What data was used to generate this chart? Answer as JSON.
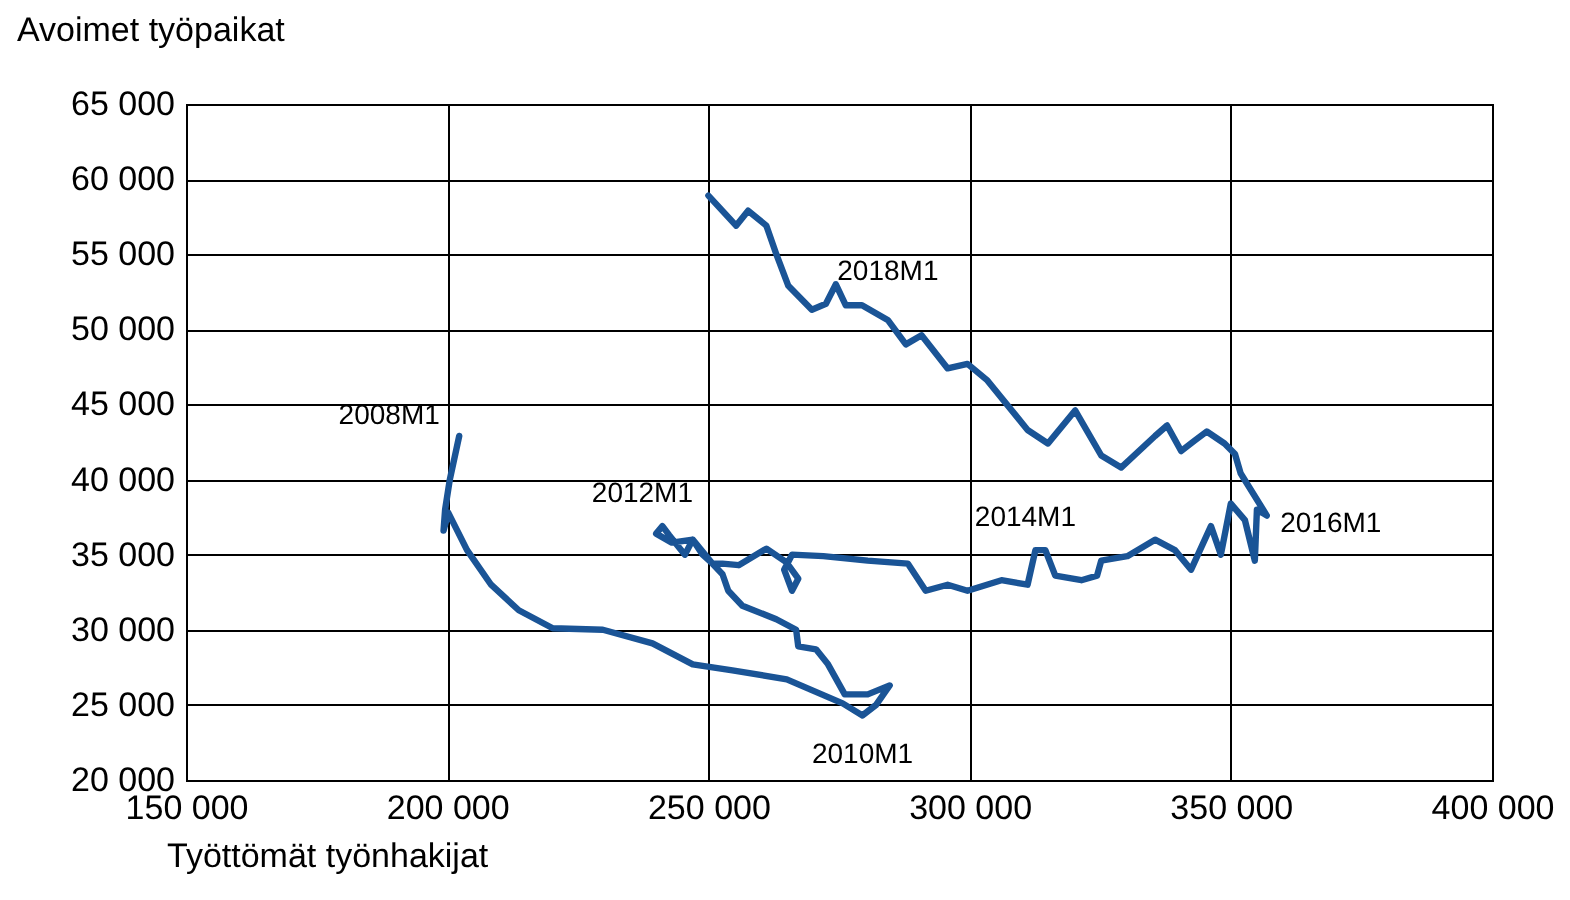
{
  "chart_data": {
    "type": "line",
    "xlabel": "Työttömät työnhakijat",
    "ylabel": "Avoimet työpaikat",
    "series": [
      {
        "color": "#1a5496",
        "x": [
          202300,
          200500,
          199600,
          199300,
          200200,
          203800,
          208400,
          213700,
          220200,
          229800,
          239300,
          247000,
          254600,
          265000,
          275700,
          279500,
          282100,
          284700,
          280500,
          276100,
          272900,
          270600,
          267200,
          266800,
          263000,
          256500,
          253800,
          252700,
          250800,
          248900,
          247000,
          243000,
          240000,
          241200,
          242500,
          245500,
          247000,
          250800,
          252700,
          255800,
          261100,
          264900,
          267200,
          266000,
          264500,
          266000,
          272000,
          280500,
          288200,
          291600,
          295800,
          299600,
          306100,
          311100,
          312600,
          314500,
          316400,
          321400,
          324400,
          325200,
          330200,
          335500,
          339300,
          342400,
          346200,
          348100,
          350000,
          352700,
          354600,
          355000,
          356900,
          351900,
          350800,
          348800,
          345400,
          343100,
          340500,
          337800,
          335500,
          329000,
          325200,
          320200,
          315000,
          311100,
          303400,
          299600,
          295800,
          290800,
          287800,
          284400,
          279400,
          276300,
          274400,
          272500,
          269800,
          265300,
          263000,
          261100,
          257600,
          255300,
          250000
        ],
        "values": [
          42900,
          40000,
          38000,
          36600,
          37800,
          35300,
          33000,
          31300,
          30100,
          30000,
          29100,
          27700,
          27300,
          26700,
          25100,
          24300,
          25000,
          26300,
          25700,
          25700,
          27700,
          28700,
          28900,
          30000,
          30700,
          31600,
          32600,
          33700,
          34400,
          35000,
          36000,
          35800,
          36400,
          36900,
          36300,
          35000,
          36000,
          34400,
          34400,
          34300,
          35400,
          34500,
          33400,
          32600,
          34000,
          35000,
          34900,
          34600,
          34400,
          32600,
          33000,
          32600,
          33300,
          33000,
          35300,
          35300,
          33600,
          33300,
          33600,
          34600,
          34900,
          36000,
          35300,
          34000,
          36900,
          35000,
          38400,
          37300,
          34600,
          38000,
          37600,
          40400,
          41700,
          42400,
          43200,
          42600,
          41900,
          43600,
          42900,
          40800,
          41600,
          44600,
          42400,
          43300,
          46600,
          47700,
          47400,
          49600,
          49000,
          50600,
          51600,
          51600,
          53000,
          51700,
          51300,
          52900,
          55000,
          56900,
          57900,
          56900,
          58900
        ]
      }
    ],
    "xlim": [
      150000,
      400000
    ],
    "xticks": [
      {
        "value": 150000,
        "label": "150 000"
      },
      {
        "value": 200000,
        "label": "200 000"
      },
      {
        "value": 250000,
        "label": "250 000"
      },
      {
        "value": 300000,
        "label": "300 000"
      },
      {
        "value": 350000,
        "label": "350 000"
      },
      {
        "value": 400000,
        "label": "400 000"
      }
    ],
    "ylim": [
      20000,
      65000
    ],
    "yticks": [
      {
        "value": 20000,
        "label": "20 000"
      },
      {
        "value": 25000,
        "label": "25 000"
      },
      {
        "value": 30000,
        "label": "30 000"
      },
      {
        "value": 35000,
        "label": "35 000"
      },
      {
        "value": 40000,
        "label": "40 000"
      },
      {
        "value": 45000,
        "label": "45 000"
      },
      {
        "value": 50000,
        "label": "50 000"
      },
      {
        "value": 55000,
        "label": "55 000"
      },
      {
        "value": 60000,
        "label": "60 000"
      },
      {
        "value": 65000,
        "label": "65 000"
      }
    ],
    "grid": true,
    "marker": "none",
    "line_style": "solid",
    "annotations": [
      {
        "text": "2008M1",
        "x": 202300,
        "y": 42900
      },
      {
        "text": "2010M1",
        "x": 279500,
        "y": 24300
      },
      {
        "text": "2012M1",
        "x": 241200,
        "y": 36900
      },
      {
        "text": "2014M1",
        "x": 312600,
        "y": 35300
      },
      {
        "text": "2016M1",
        "x": 356900,
        "y": 37600
      },
      {
        "text": "2018M1",
        "x": 274400,
        "y": 53000
      }
    ]
  }
}
